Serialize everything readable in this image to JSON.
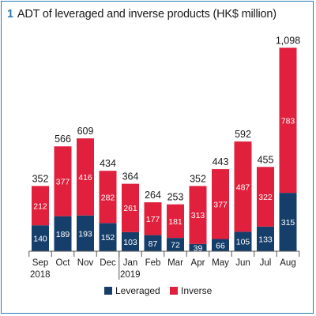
{
  "title": {
    "number": "1",
    "text": "ADT of leveraged and inverse products (HK$ million)"
  },
  "colors": {
    "leveraged": "#163e6a",
    "inverse": "#e0203c",
    "frame": "#2a79b5"
  },
  "chart_data": {
    "type": "bar",
    "stacked": true,
    "title": "ADT of leveraged and inverse products (HK$ million)",
    "categories": [
      "Sep",
      "Oct",
      "Nov",
      "Dec",
      "Jan",
      "Feb",
      "Mar",
      "Apr",
      "May",
      "Jun",
      "Jul",
      "Aug"
    ],
    "year_labels": [
      {
        "index": 0,
        "label": "2018"
      },
      {
        "index": 4,
        "label": "2019"
      }
    ],
    "series": [
      {
        "name": "Leveraged",
        "values": [
          140,
          189,
          193,
          152,
          103,
          87,
          72,
          39,
          66,
          105,
          133,
          315
        ]
      },
      {
        "name": "Inverse",
        "values": [
          212,
          377,
          416,
          282,
          261,
          177,
          181,
          313,
          377,
          487,
          322,
          783
        ]
      }
    ],
    "totals": [
      "352",
      "566",
      "609",
      "434",
      "364",
      "264",
      "253",
      "352",
      "443",
      "592",
      "455",
      "1,098"
    ],
    "ylim": [
      0,
      1100
    ],
    "grid": false,
    "legend_position": "bottom"
  }
}
